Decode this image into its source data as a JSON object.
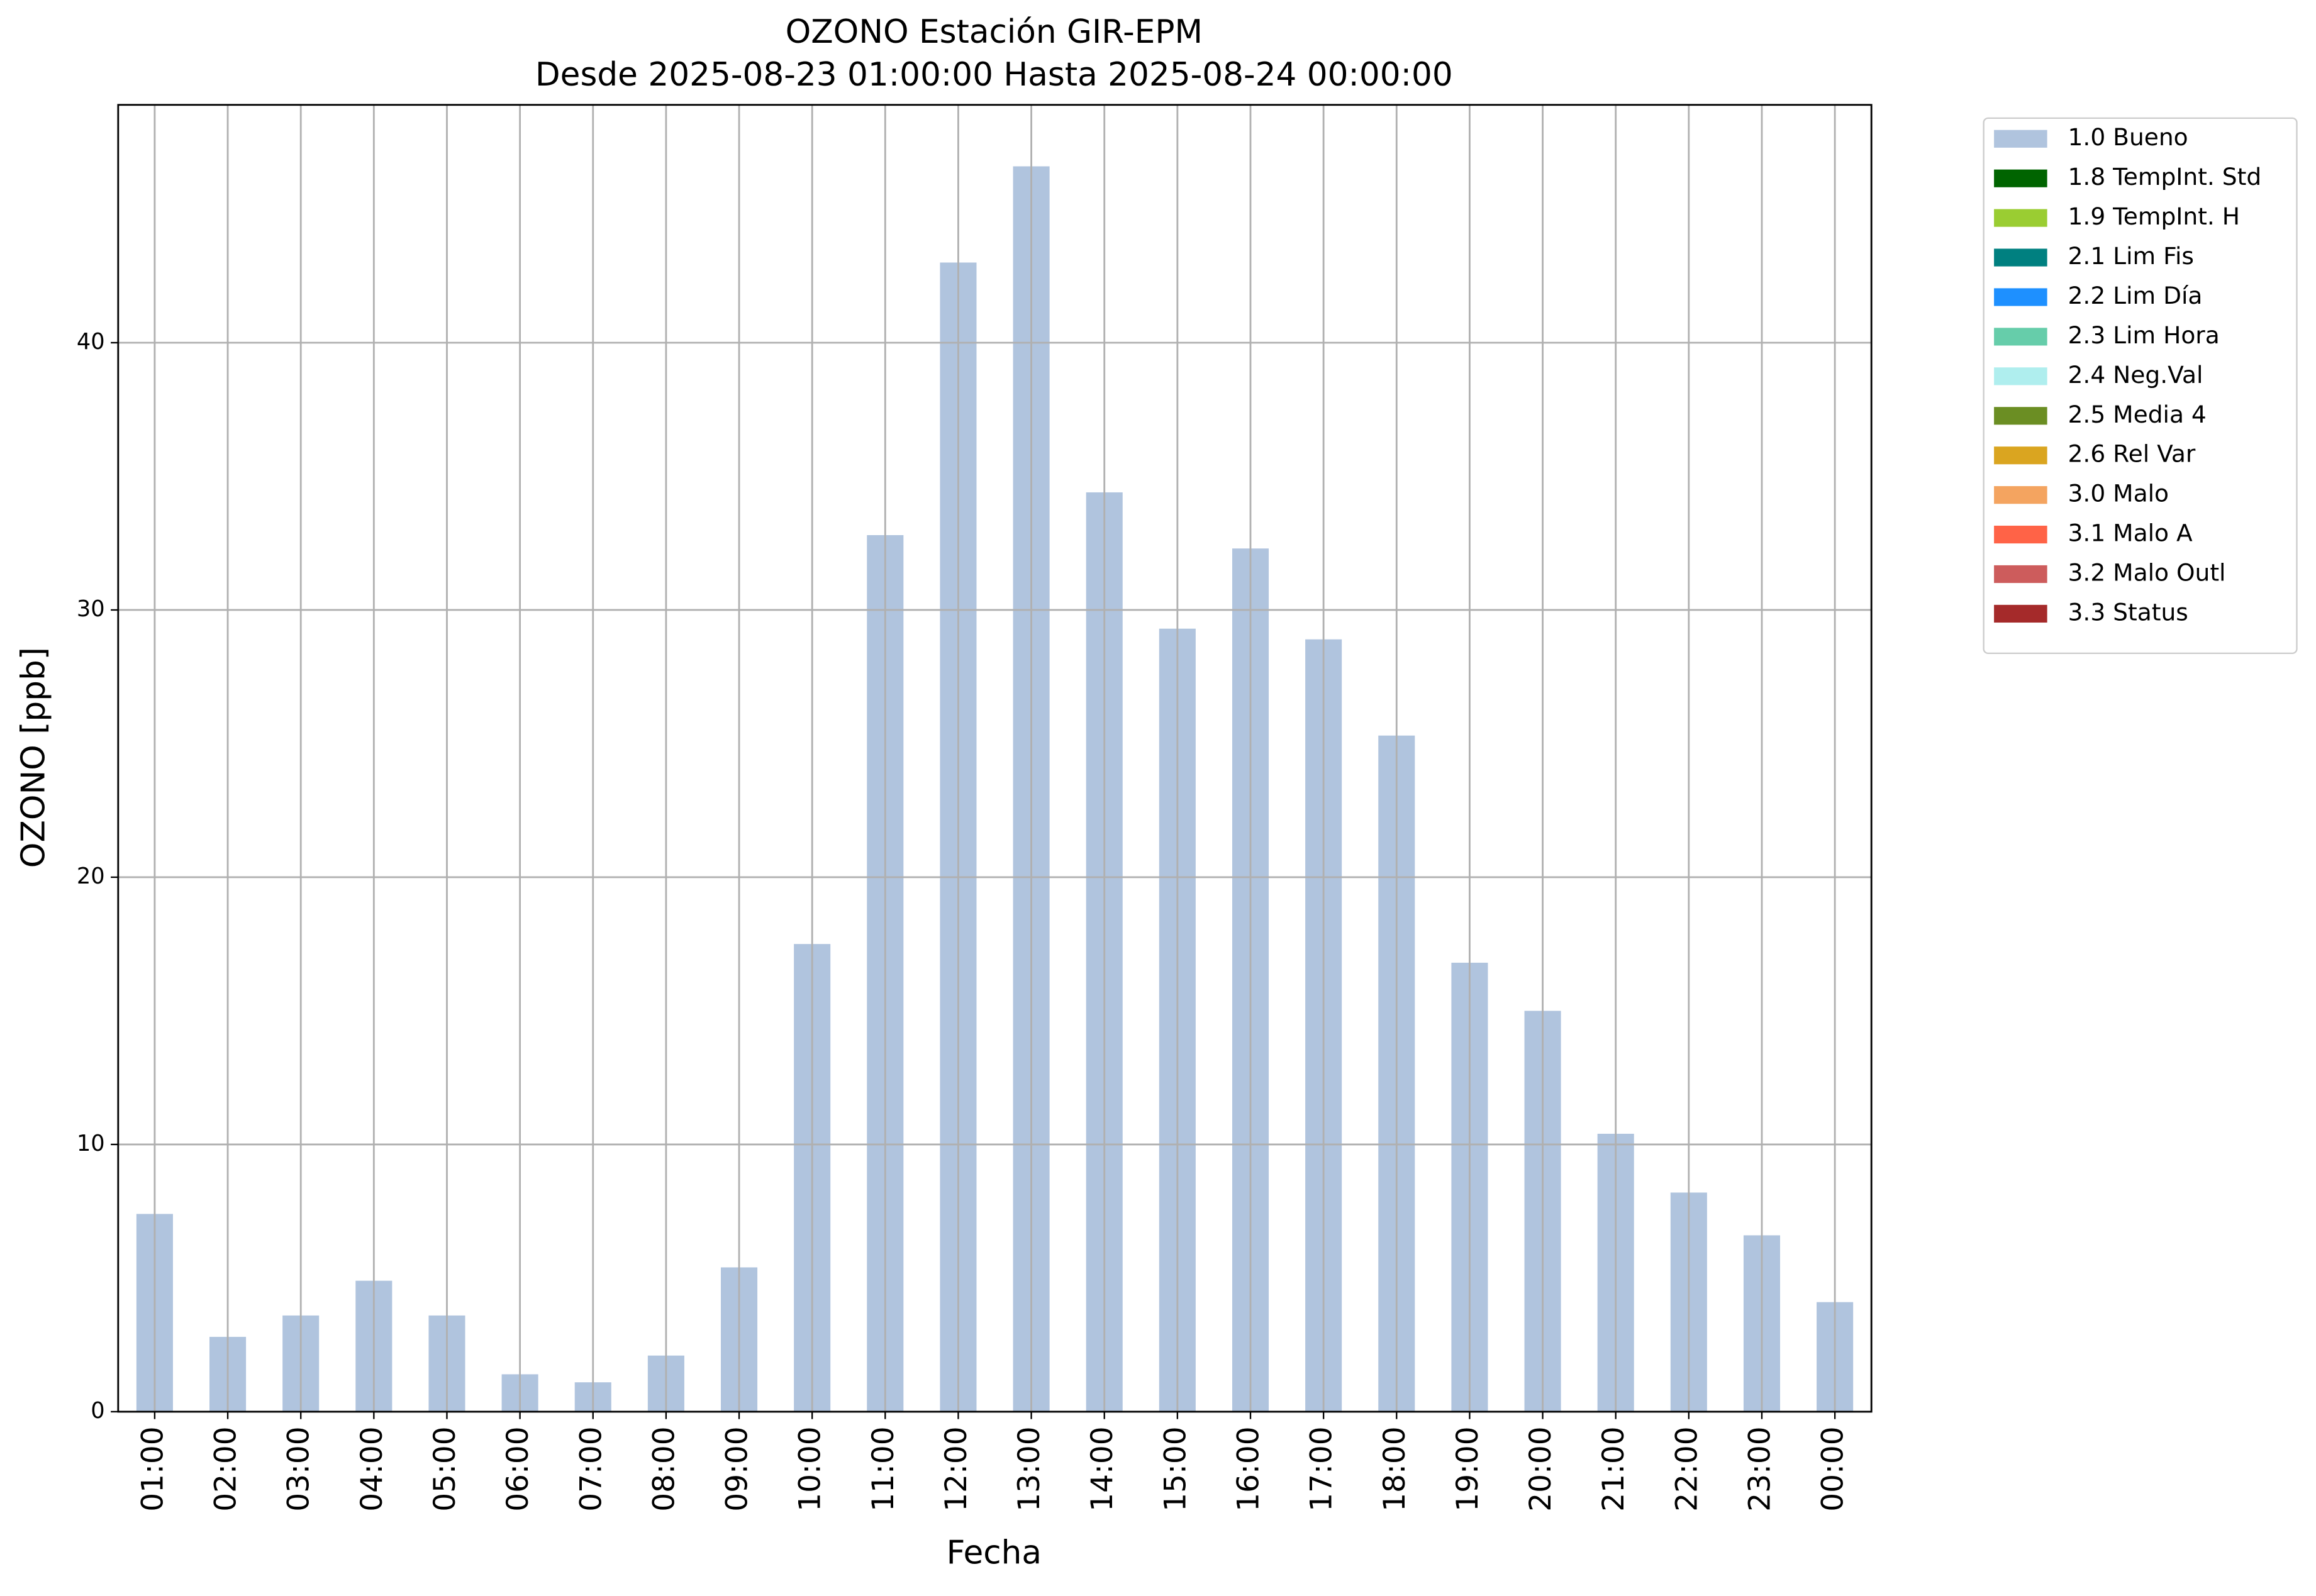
{
  "chart_data": {
    "type": "bar",
    "title": "OZONO Estación GIR-EPM",
    "subtitle": "Desde 2025-08-23 01:00:00 Hasta 2025-08-24 00:00:00",
    "x_label": "Fecha",
    "y_label": "OZONO [ppb]",
    "categories": [
      "01:00",
      "02:00",
      "03:00",
      "04:00",
      "05:00",
      "06:00",
      "07:00",
      "08:00",
      "09:00",
      "10:00",
      "11:00",
      "12:00",
      "13:00",
      "14:00",
      "15:00",
      "16:00",
      "17:00",
      "18:00",
      "19:00",
      "20:00",
      "21:00",
      "22:00",
      "23:00",
      "00:00"
    ],
    "values": [
      7.4,
      2.8,
      3.6,
      4.9,
      3.6,
      1.4,
      1.1,
      2.1,
      5.4,
      17.5,
      32.8,
      43.0,
      46.6,
      34.4,
      29.3,
      32.3,
      28.9,
      25.3,
      16.8,
      15.0,
      10.4,
      8.2,
      6.6,
      4.1
    ],
    "color": "#b0c4de",
    "ylim": [
      0,
      48.9
    ],
    "yticks": [
      0,
      10,
      20,
      30,
      40
    ],
    "grid": true,
    "legend_position": "outside-right",
    "legend": [
      {
        "label": "1.0 Bueno",
        "color": "#b0c4de"
      },
      {
        "label": "1.8 TempInt. Std",
        "color": "#006400"
      },
      {
        "label": "1.9 TempInt. H",
        "color": "#9acd32"
      },
      {
        "label": "2.1 Lim Fis",
        "color": "#008080"
      },
      {
        "label": "2.2 Lim Día",
        "color": "#1e90ff"
      },
      {
        "label": "2.3 Lim Hora",
        "color": "#66cdaa"
      },
      {
        "label": "2.4 Neg.Val",
        "color": "#afeeee"
      },
      {
        "label": "2.5 Media 4",
        "color": "#6b8e23"
      },
      {
        "label": "2.6 Rel Var",
        "color": "#daa520"
      },
      {
        "label": "3.0 Malo",
        "color": "#f4a460"
      },
      {
        "label": "3.1 Malo A",
        "color": "#ff6347"
      },
      {
        "label": "3.2 Malo Outl",
        "color": "#cd5c5c"
      },
      {
        "label": "3.3 Status",
        "color": "#a52a2a"
      }
    ]
  }
}
